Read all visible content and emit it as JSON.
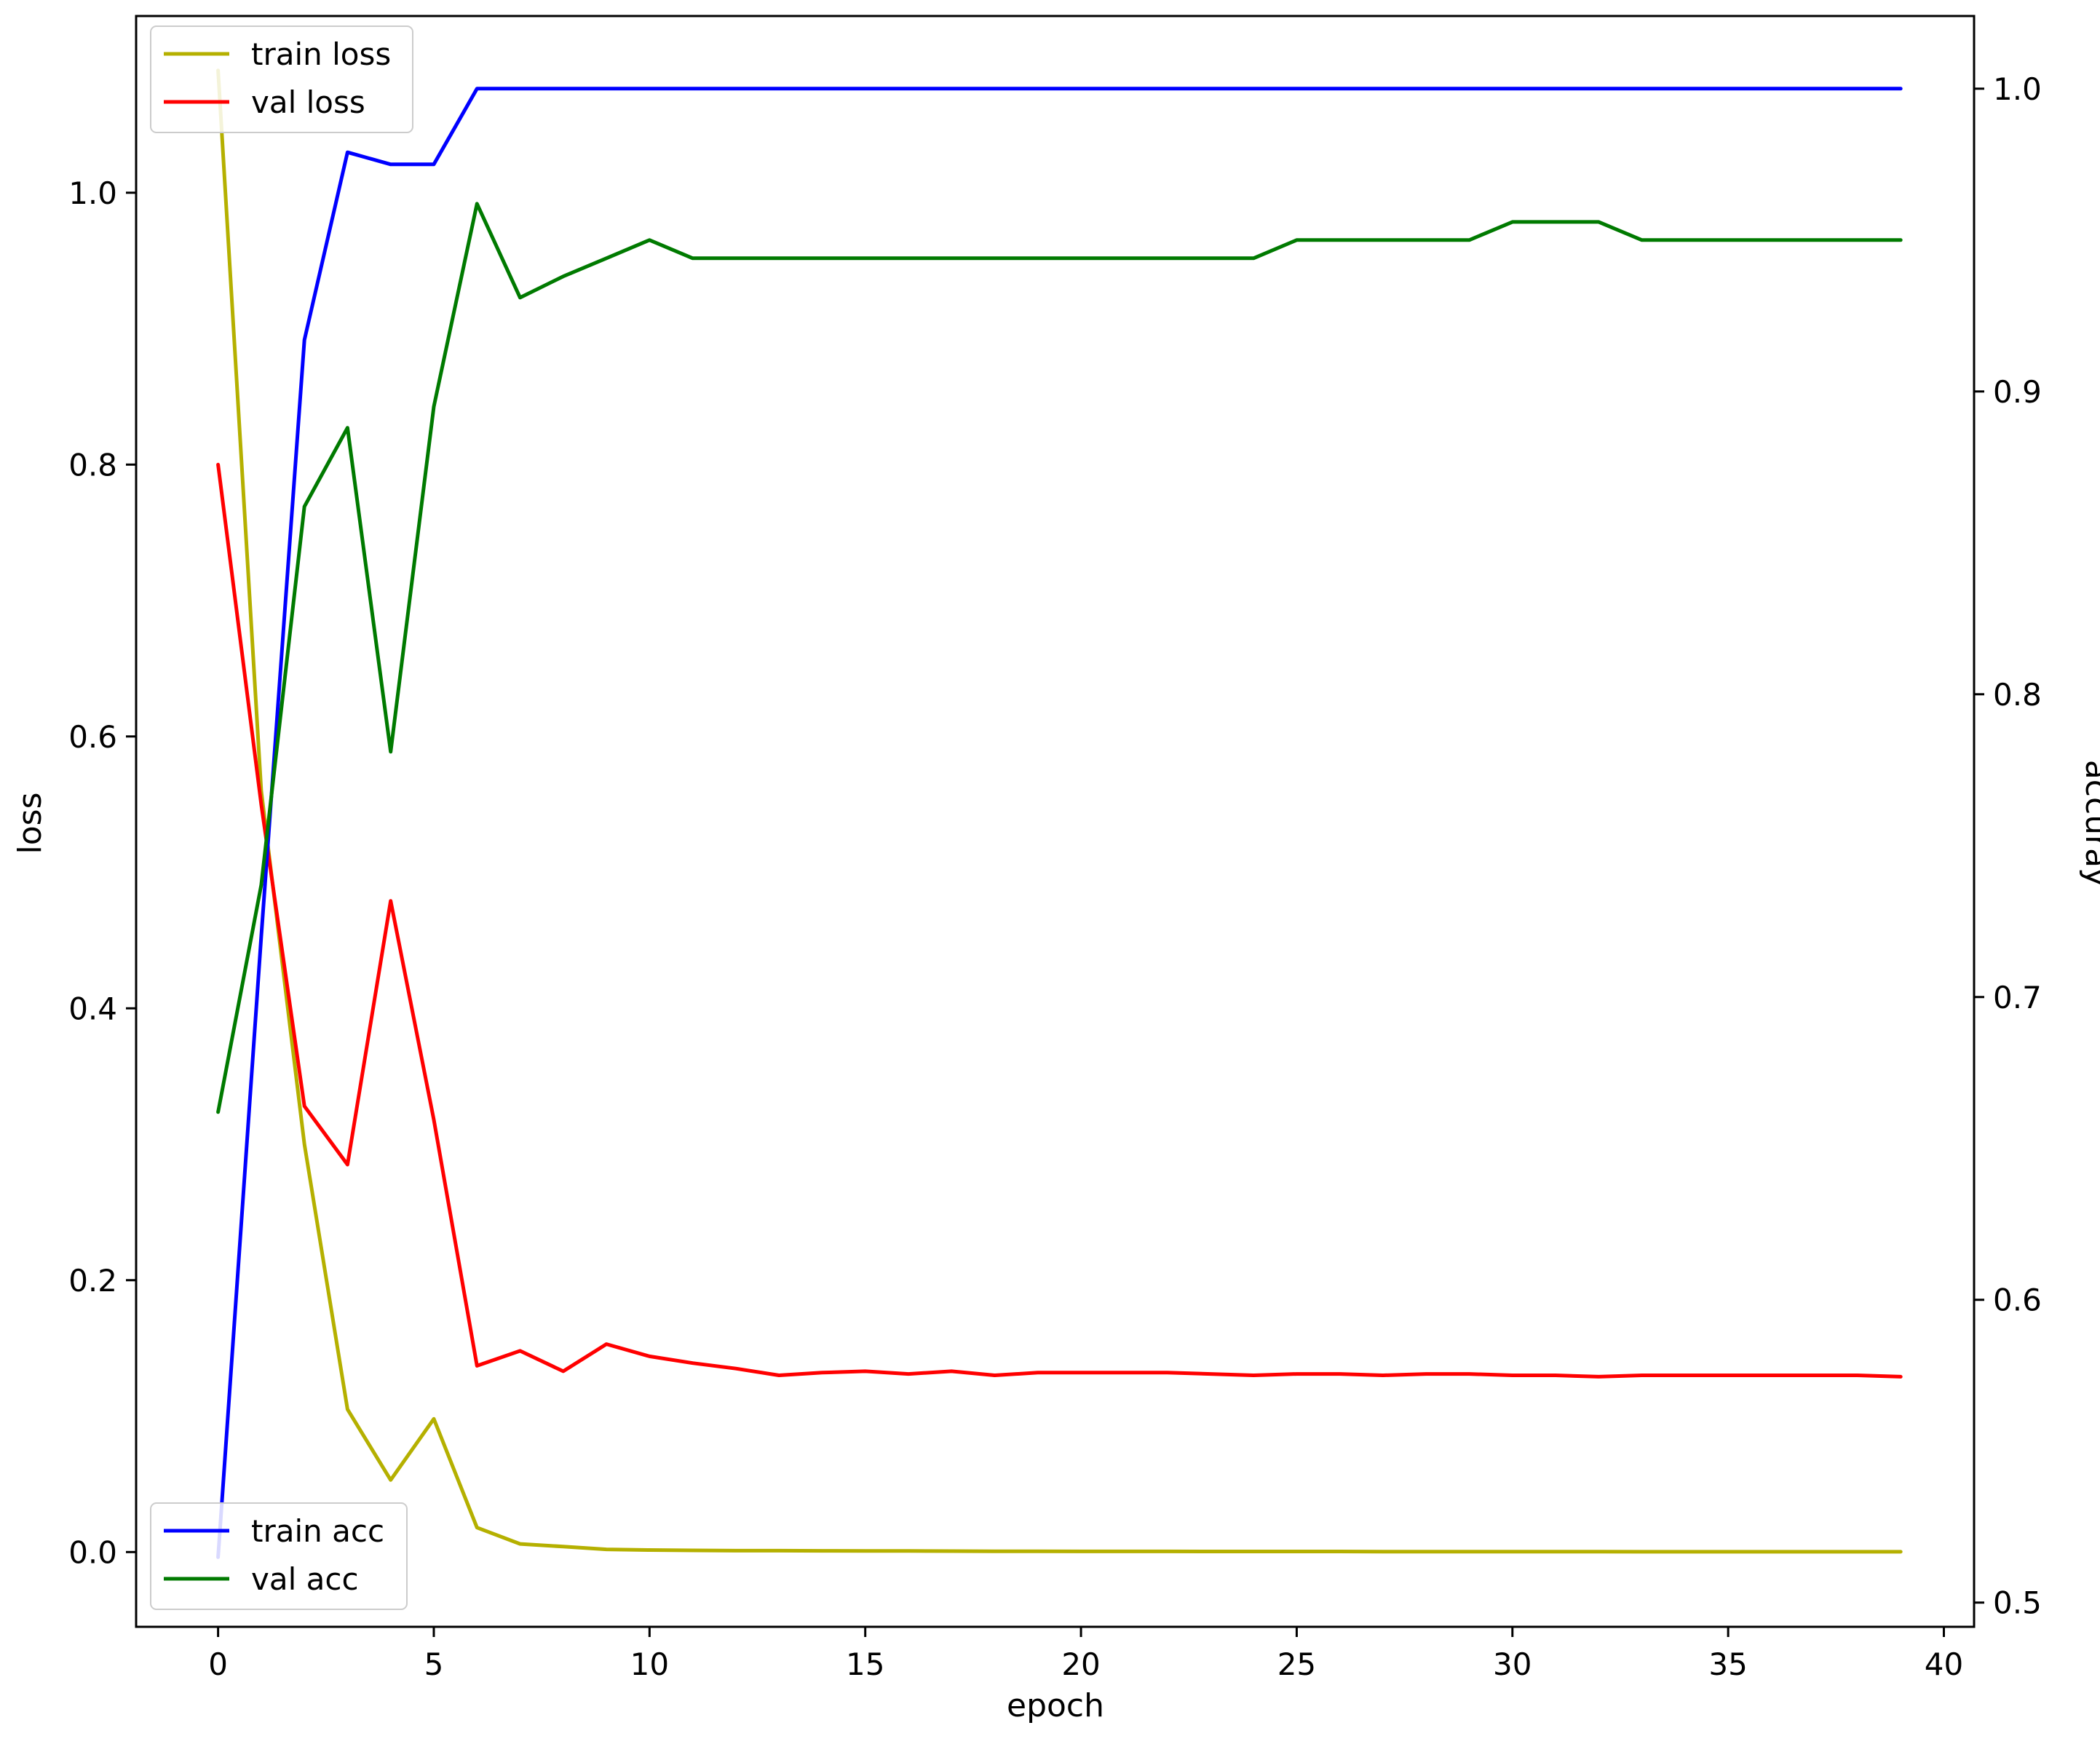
{
  "chart_data": {
    "type": "line",
    "xlabel": "epoch",
    "ylabel_left": "loss",
    "ylabel_right": "accuray",
    "xlim": [
      -1.9,
      40.7
    ],
    "ylim_left": [
      -0.055,
      1.13
    ],
    "ylim_right": [
      0.492,
      1.024
    ],
    "grid": false,
    "x_ticks": [
      0,
      5,
      10,
      15,
      20,
      25,
      30,
      35,
      40
    ],
    "x_tick_labels": [
      "0",
      "5",
      "10",
      "15",
      "20",
      "25",
      "30",
      "35",
      "40"
    ],
    "left_ticks": [
      0.0,
      0.2,
      0.4,
      0.6,
      0.8,
      1.0
    ],
    "left_tick_labels": [
      "0.0",
      "0.2",
      "0.4",
      "0.6",
      "0.8",
      "1.0"
    ],
    "right_ticks": [
      0.5,
      0.6,
      0.7,
      0.8,
      0.9,
      1.0
    ],
    "right_tick_labels": [
      "0.5",
      "0.6",
      "0.7",
      "0.8",
      "0.9",
      "1.0"
    ],
    "legend_loss": {
      "placement": "top-left",
      "entries": [
        "train loss",
        "val loss"
      ]
    },
    "legend_acc": {
      "placement": "bottom-left",
      "entries": [
        "train acc",
        "val acc"
      ]
    },
    "x": [
      0,
      1,
      2,
      3,
      4,
      5,
      6,
      7,
      8,
      9,
      10,
      11,
      12,
      13,
      14,
      15,
      16,
      17,
      18,
      19,
      20,
      21,
      22,
      23,
      24,
      25,
      26,
      27,
      28,
      29,
      30,
      31,
      32,
      33,
      34,
      35,
      36,
      37,
      38,
      39
    ],
    "series": [
      {
        "name": "train loss",
        "axis": "left",
        "color": "#b5b000",
        "values": [
          1.09,
          0.56,
          0.3,
          0.105,
          0.053,
          0.098,
          0.018,
          0.006,
          0.004,
          0.002,
          0.0015,
          0.0012,
          0.001,
          0.001,
          0.0009,
          0.0008,
          0.0008,
          0.0007,
          0.0006,
          0.0006,
          0.0005,
          0.0005,
          0.0005,
          0.0004,
          0.0004,
          0.0004,
          0.0004,
          0.0003,
          0.0003,
          0.0003,
          0.0003,
          0.0003,
          0.0003,
          0.0002,
          0.0002,
          0.0002,
          0.0002,
          0.0002,
          0.0002,
          0.0002
        ]
      },
      {
        "name": "val loss",
        "axis": "left",
        "color": "#ff0000",
        "values": [
          0.8,
          0.55,
          0.328,
          0.285,
          0.479,
          0.318,
          0.137,
          0.148,
          0.133,
          0.153,
          0.144,
          0.139,
          0.135,
          0.13,
          0.132,
          0.133,
          0.131,
          0.133,
          0.13,
          0.132,
          0.132,
          0.132,
          0.132,
          0.131,
          0.13,
          0.131,
          0.131,
          0.13,
          0.131,
          0.131,
          0.13,
          0.13,
          0.129,
          0.13,
          0.13,
          0.13,
          0.13,
          0.13,
          0.13,
          0.129
        ]
      },
      {
        "name": "train acc",
        "axis": "right",
        "color": "#0000ff",
        "values": [
          0.515,
          0.72,
          0.917,
          0.979,
          0.975,
          0.975,
          1.0,
          1.0,
          1.0,
          1.0,
          1.0,
          1.0,
          1.0,
          1.0,
          1.0,
          1.0,
          1.0,
          1.0,
          1.0,
          1.0,
          1.0,
          1.0,
          1.0,
          1.0,
          1.0,
          1.0,
          1.0,
          1.0,
          1.0,
          1.0,
          1.0,
          1.0,
          1.0,
          1.0,
          1.0,
          1.0,
          1.0,
          1.0,
          1.0,
          1.0
        ]
      },
      {
        "name": "val acc",
        "axis": "right",
        "color": "#007a00",
        "values": [
          0.662,
          0.737,
          0.862,
          0.888,
          0.781,
          0.895,
          0.962,
          0.931,
          0.938,
          0.944,
          0.95,
          0.944,
          0.944,
          0.944,
          0.944,
          0.944,
          0.944,
          0.944,
          0.944,
          0.944,
          0.944,
          0.944,
          0.944,
          0.944,
          0.944,
          0.95,
          0.95,
          0.95,
          0.95,
          0.95,
          0.956,
          0.956,
          0.956,
          0.95,
          0.95,
          0.95,
          0.95,
          0.95,
          0.95,
          0.95
        ]
      }
    ]
  }
}
